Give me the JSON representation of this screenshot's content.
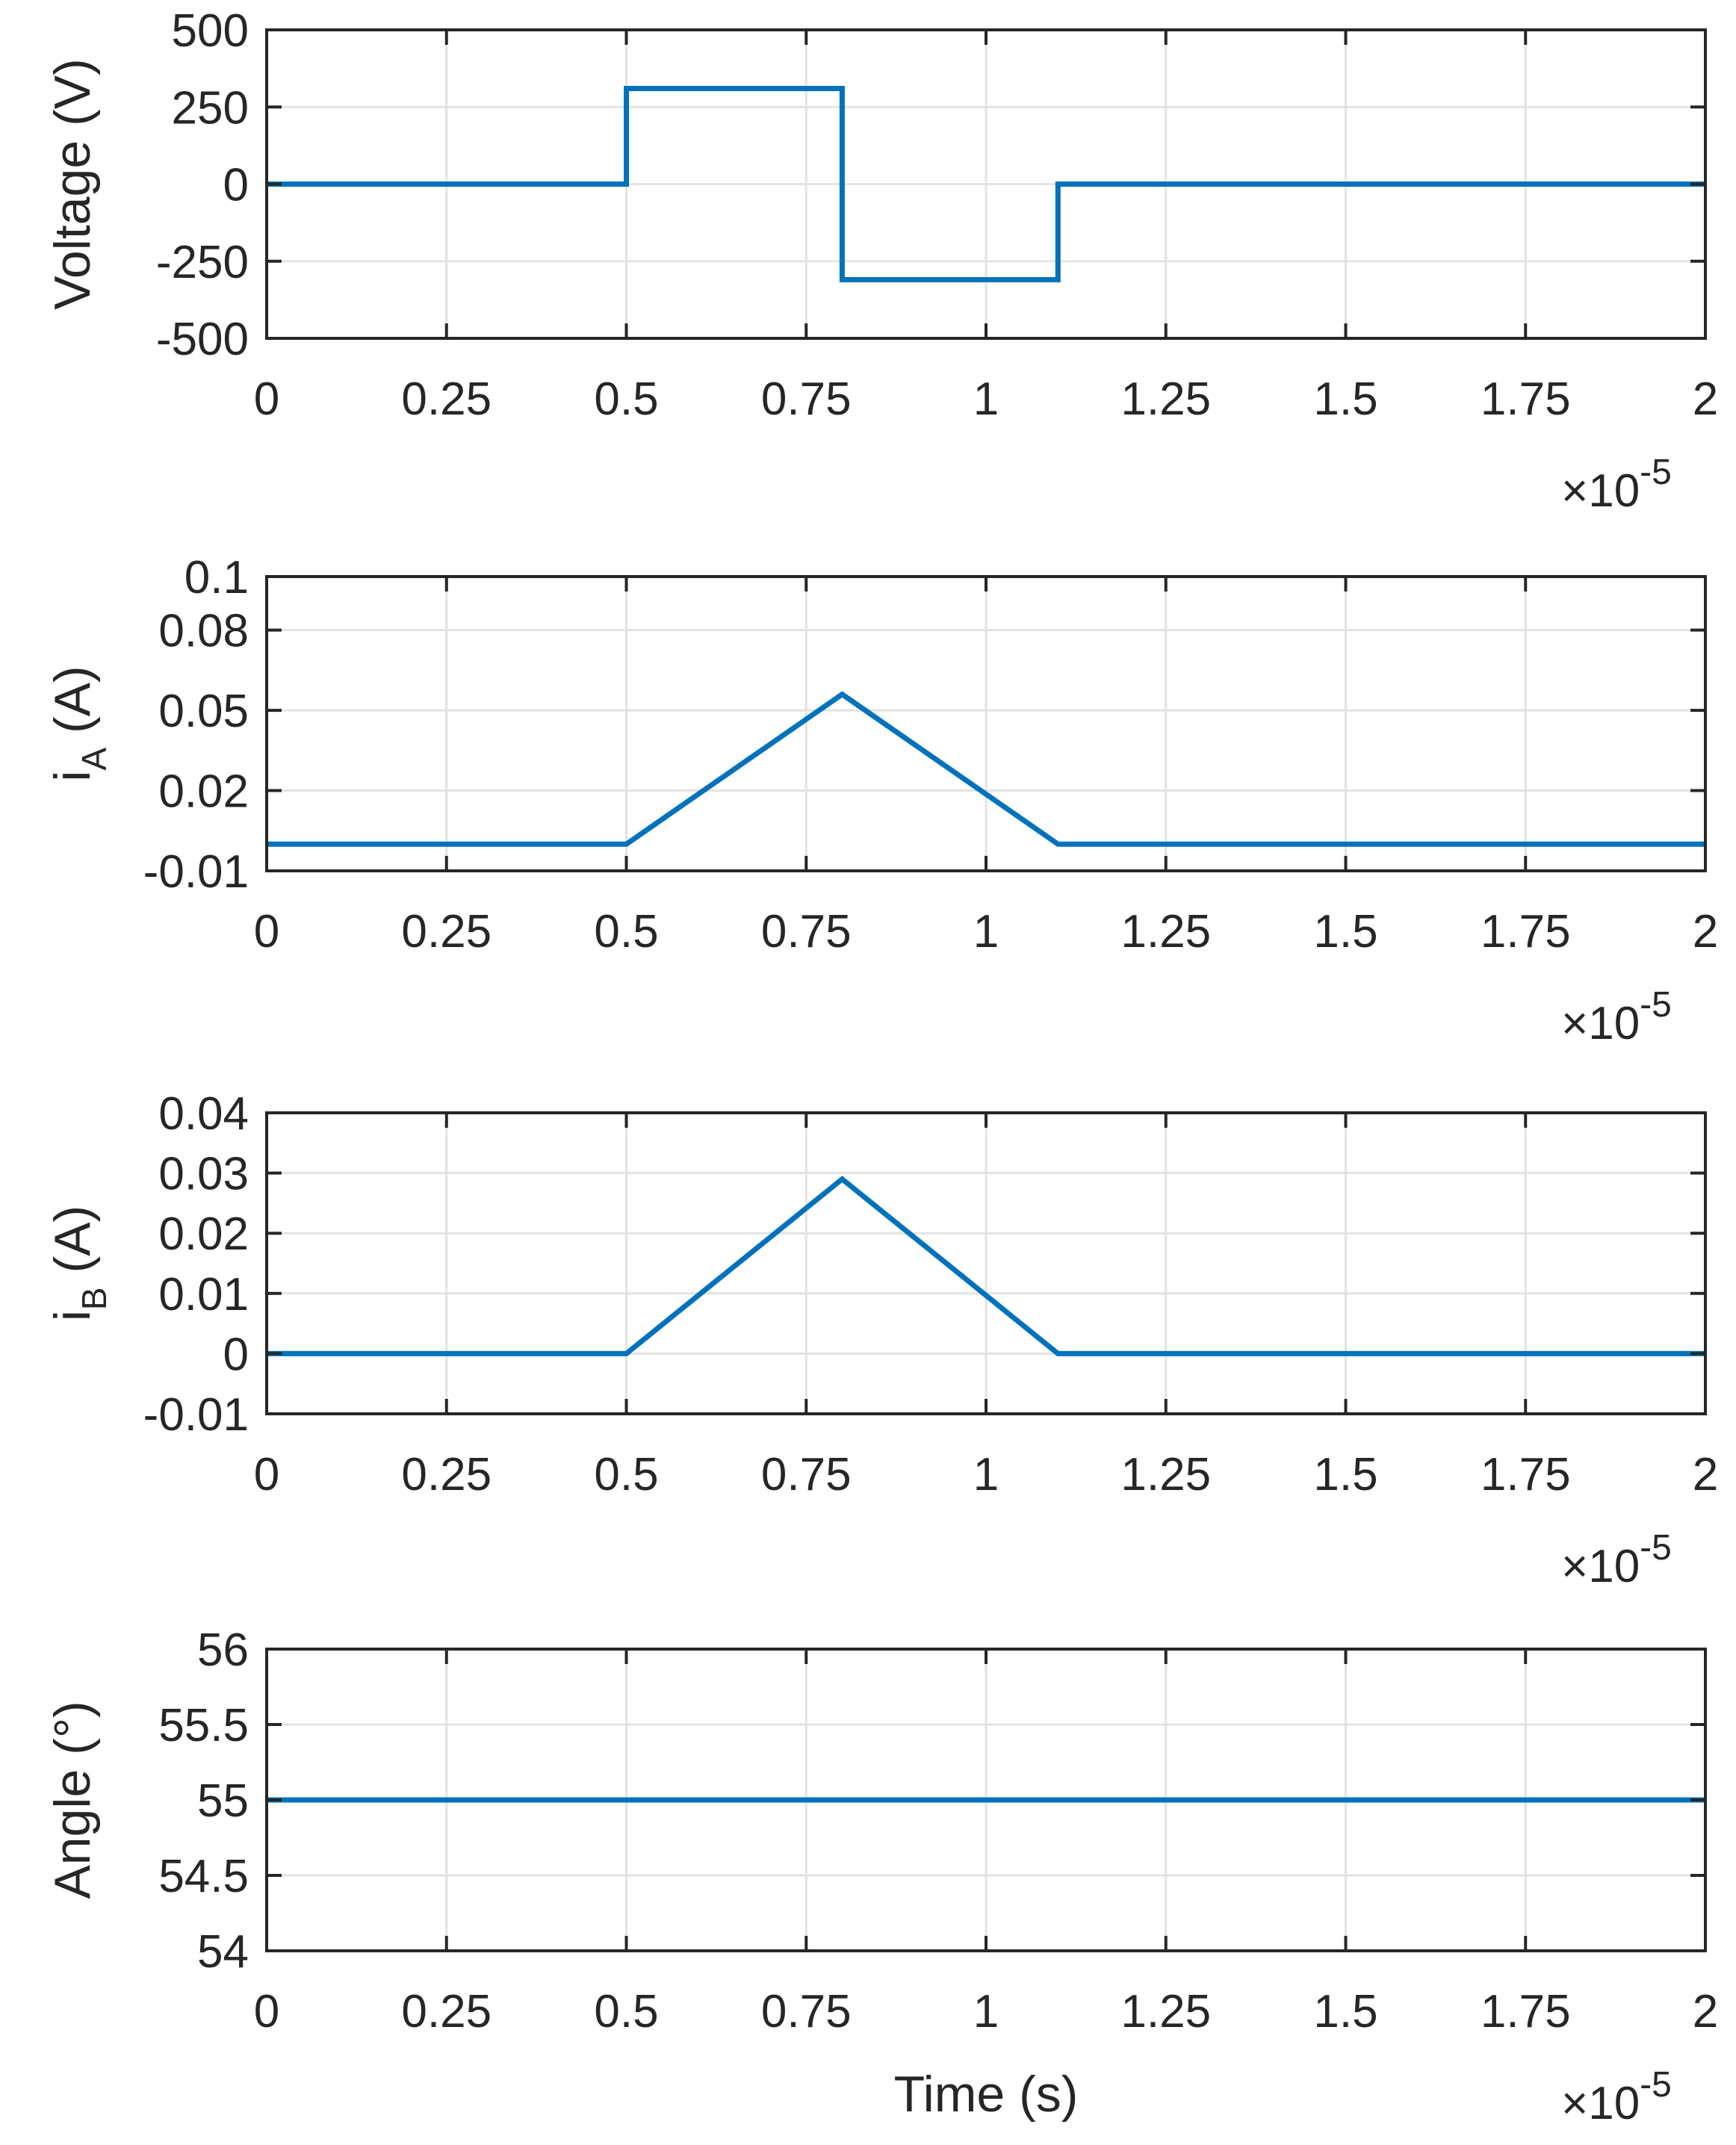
{
  "chart_data": [
    {
      "type": "line",
      "ylabel": "Voltage (V)",
      "xlabel": "",
      "x_exponent_label": "×10",
      "x_exponent_power": "-5",
      "xlim": [
        0,
        2
      ],
      "ylim": [
        -500,
        500
      ],
      "x_ticks": [
        0,
        0.25,
        0.5,
        0.75,
        1,
        1.25,
        1.5,
        1.75,
        2
      ],
      "x_tick_labels": [
        "0",
        "0.25",
        "0.5",
        "0.75",
        "1",
        "1.25",
        "1.5",
        "1.75",
        "2"
      ],
      "y_ticks": [
        500,
        250,
        0,
        -250,
        -500
      ],
      "y_tick_labels": [
        "500",
        "250",
        "0",
        "-250",
        "-500"
      ],
      "grid": true,
      "line_color": "#0072BD",
      "series": [
        {
          "x": [
            0,
            0.5,
            0.5,
            0.8,
            0.8,
            1.1,
            1.1,
            2
          ],
          "y": [
            0,
            0,
            310,
            310,
            -310,
            -310,
            0,
            0
          ]
        }
      ]
    },
    {
      "type": "line",
      "ylabel": "i",
      "ylabel_subscript": "A",
      "ylabel_suffix": " (A)",
      "xlabel": "",
      "x_exponent_label": "×10",
      "x_exponent_power": "-5",
      "xlim": [
        0,
        2
      ],
      "ylim": [
        -0.01,
        0.1
      ],
      "x_ticks": [
        0,
        0.25,
        0.5,
        0.75,
        1,
        1.25,
        1.5,
        1.75,
        2
      ],
      "x_tick_labels": [
        "0",
        "0.25",
        "0.5",
        "0.75",
        "1",
        "1.25",
        "1.5",
        "1.75",
        "2"
      ],
      "y_ticks": [
        0.1,
        0.08,
        0.05,
        0.02,
        -0.01
      ],
      "y_tick_labels": [
        "0.1",
        "0.08",
        "0.05",
        "0.02",
        "-0.01"
      ],
      "grid": true,
      "line_color": "#0072BD",
      "series": [
        {
          "x": [
            0,
            0.5,
            0.8,
            1.1,
            2
          ],
          "y": [
            0,
            0,
            0.056,
            0,
            0
          ]
        }
      ]
    },
    {
      "type": "line",
      "ylabel": "i",
      "ylabel_subscript": "B",
      "ylabel_suffix": " (A)",
      "xlabel": "",
      "x_exponent_label": "×10",
      "x_exponent_power": "-5",
      "xlim": [
        0,
        2
      ],
      "ylim": [
        -0.01,
        0.04
      ],
      "x_ticks": [
        0,
        0.25,
        0.5,
        0.75,
        1,
        1.25,
        1.5,
        1.75,
        2
      ],
      "x_tick_labels": [
        "0",
        "0.25",
        "0.5",
        "0.75",
        "1",
        "1.25",
        "1.5",
        "1.75",
        "2"
      ],
      "y_ticks": [
        0.04,
        0.03,
        0.02,
        0.01,
        0,
        -0.01
      ],
      "y_tick_labels": [
        "0.04",
        "0.03",
        "0.02",
        "0.01",
        "0",
        "-0.01"
      ],
      "grid": true,
      "line_color": "#0072BD",
      "series": [
        {
          "x": [
            0,
            0.5,
            0.8,
            1.1,
            2
          ],
          "y": [
            0,
            0,
            0.029,
            0,
            0
          ]
        }
      ]
    },
    {
      "type": "line",
      "ylabel": "Angle (°)",
      "xlabel": "Time (s)",
      "x_exponent_label": "×10",
      "x_exponent_power": "-5",
      "xlim": [
        0,
        2
      ],
      "ylim": [
        54,
        56
      ],
      "x_ticks": [
        0,
        0.25,
        0.5,
        0.75,
        1,
        1.25,
        1.5,
        1.75,
        2
      ],
      "x_tick_labels": [
        "0",
        "0.25",
        "0.5",
        "0.75",
        "1",
        "1.25",
        "1.5",
        "1.75",
        "2"
      ],
      "y_ticks": [
        56,
        55.5,
        55,
        54.5,
        54
      ],
      "y_tick_labels": [
        "56",
        "55.5",
        "55",
        "54.5",
        "54"
      ],
      "grid": true,
      "line_color": "#0072BD",
      "series": [
        {
          "x": [
            0,
            2
          ],
          "y": [
            55,
            55
          ]
        }
      ]
    }
  ]
}
